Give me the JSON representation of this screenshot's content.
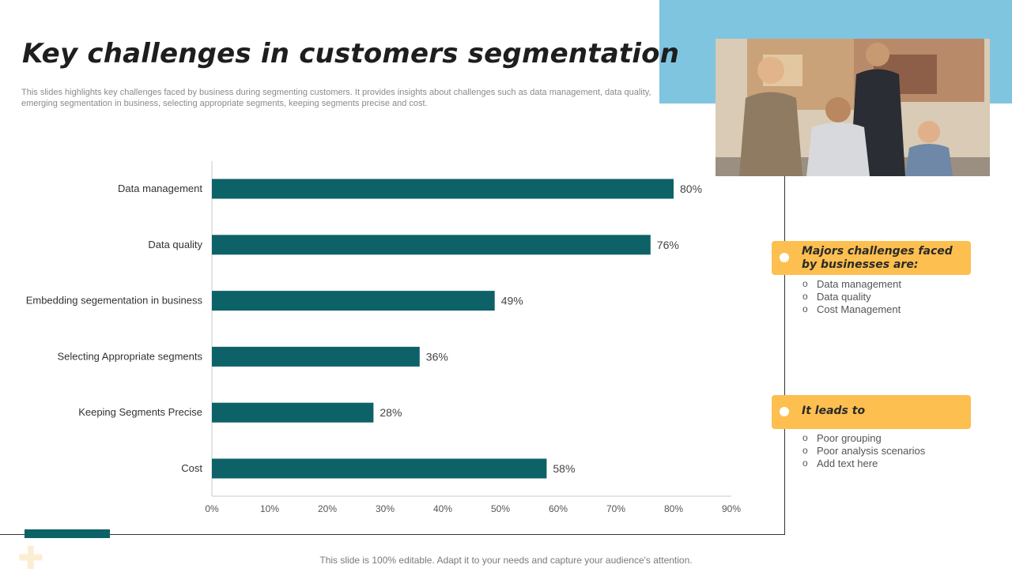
{
  "title": "Key challenges in customers segmentation",
  "subtitle": "This slides highlights key challenges faced by business during segmenting customers. It provides insights about challenges such as data management, data quality, emerging segmentation in business, selecting appropriate segments, keeping segments precise and cost.",
  "colors": {
    "bar": "#0d6267",
    "accent_blue": "#7fc5e0",
    "banner": "#fdbf4f"
  },
  "chart_data": {
    "type": "bar",
    "orientation": "horizontal",
    "categories": [
      "Data management",
      "Data quality",
      "Embedding segementation in business",
      "Selecting Appropriate segments",
      "Keeping Segments Precise",
      "Cost"
    ],
    "values": [
      80,
      76,
      49,
      36,
      28,
      58
    ],
    "labels": [
      "80%",
      "76%",
      "49%",
      "36%",
      "28%",
      "58%"
    ],
    "xticks": [
      "0%",
      "10%",
      "20%",
      "30%",
      "40%",
      "50%",
      "60%",
      "70%",
      "80%",
      "90%"
    ],
    "xlim": [
      0,
      90
    ],
    "title": "",
    "xlabel": "",
    "ylabel": "",
    "grid": false
  },
  "photo": {
    "icon": "team-photo"
  },
  "panels": {
    "challenges": {
      "heading": "Majors challenges faced by businesses are:",
      "items": [
        "Data management",
        "Data quality",
        "Cost Management"
      ]
    },
    "leads_to": {
      "heading": "It leads to",
      "items": [
        "Poor grouping",
        "Poor analysis scenarios",
        "Add text here"
      ]
    }
  },
  "footer": "This slide is 100% editable. Adapt it to your needs and capture your audience's attention."
}
